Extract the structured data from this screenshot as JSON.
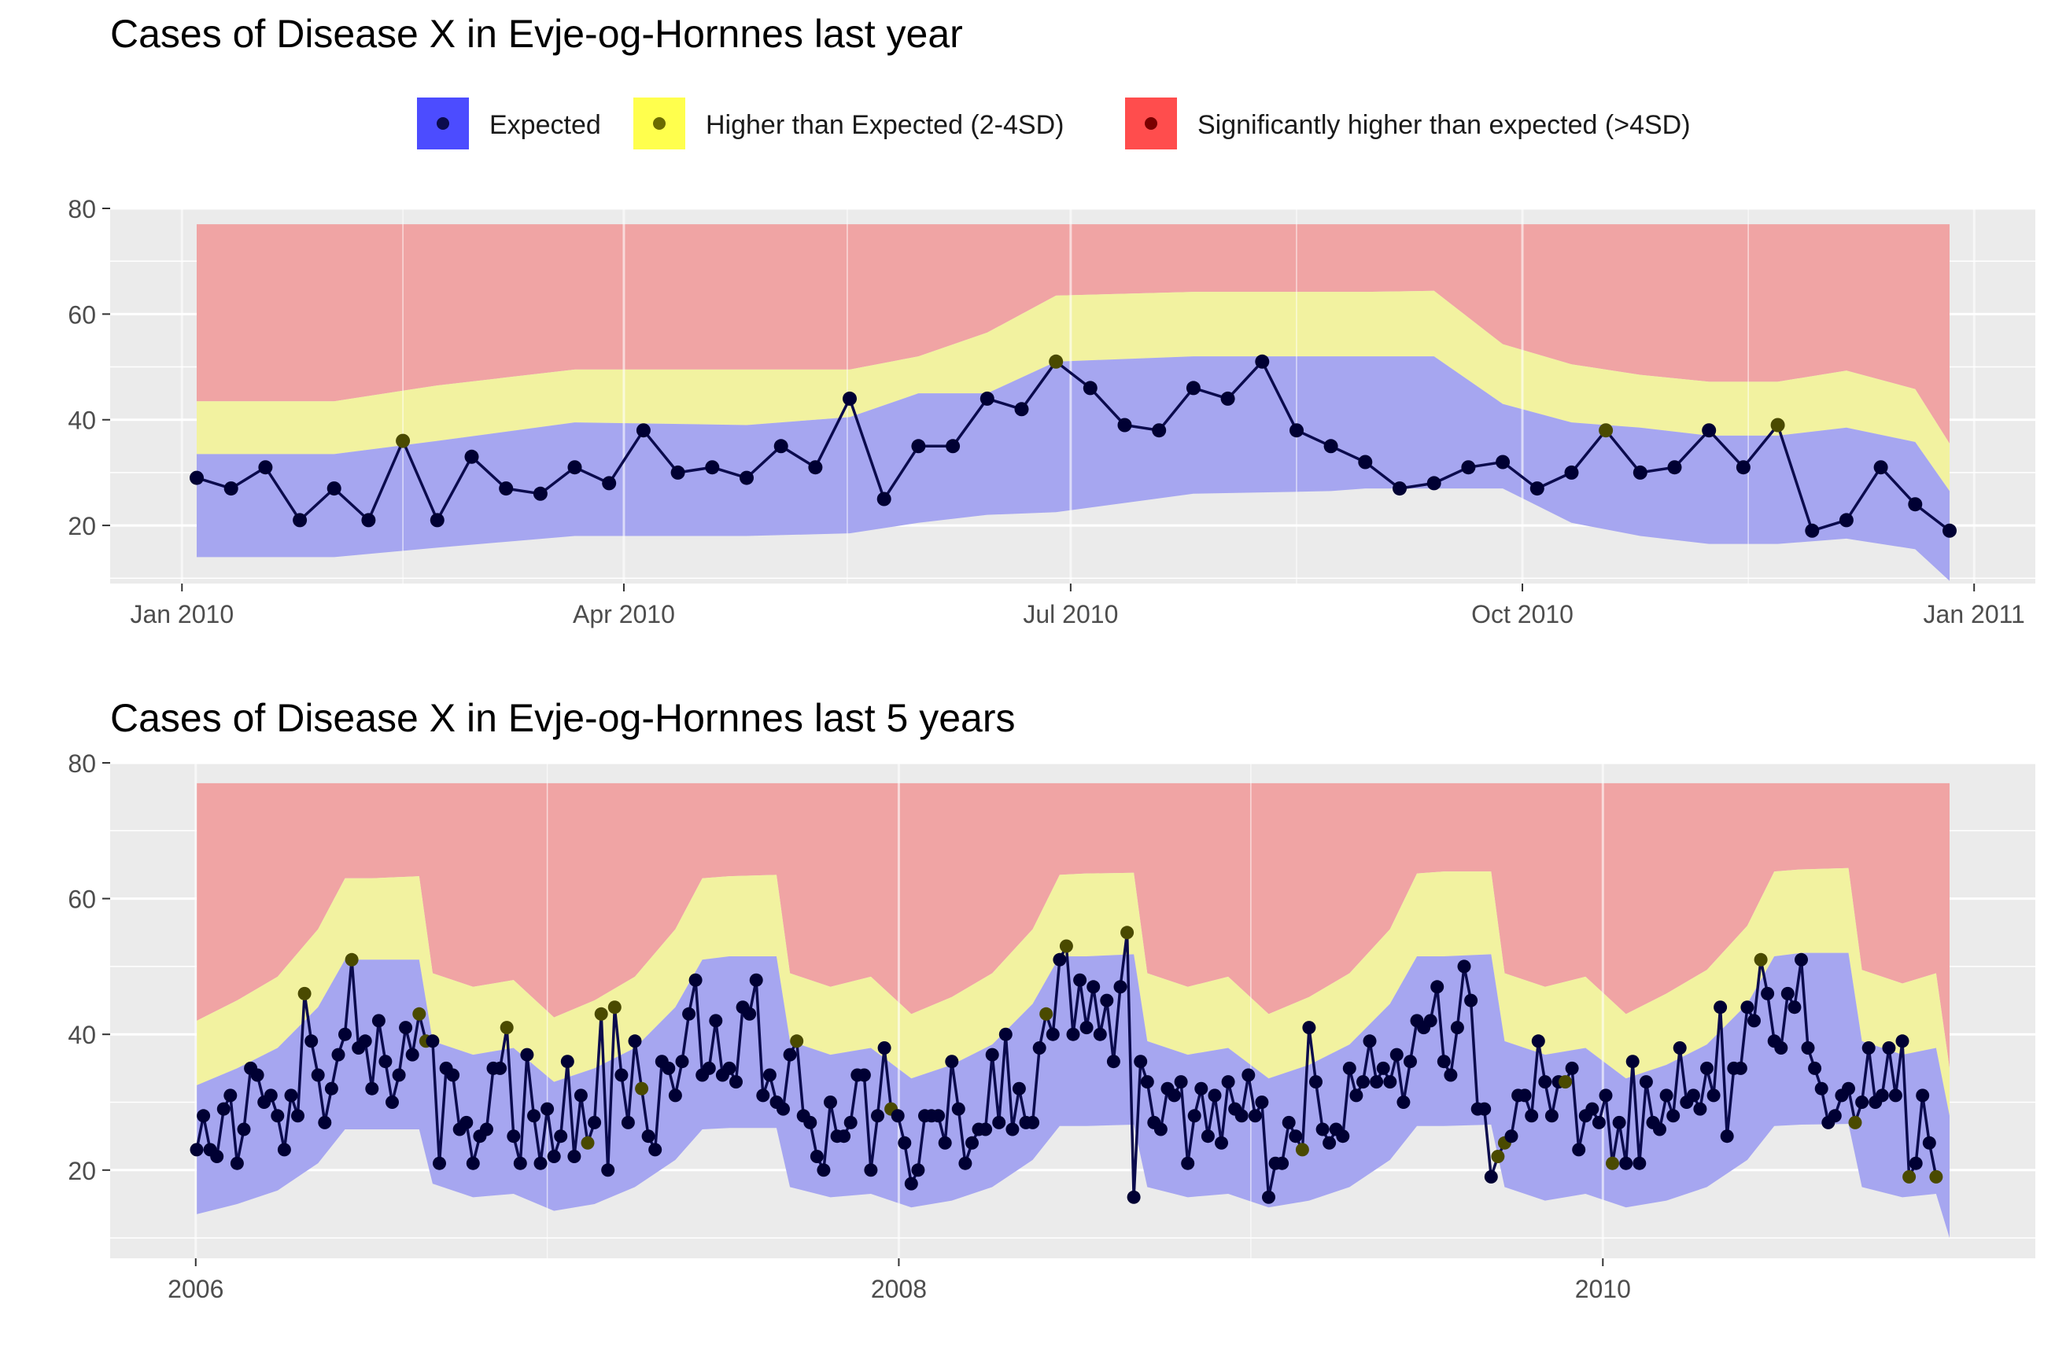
{
  "legend": {
    "items": [
      {
        "label": "Expected",
        "fill": "#4c4cff",
        "point": "#0b0b4d"
      },
      {
        "label": "Higher than Expected (2-4SD)",
        "fill": "#ffff4d",
        "point": "#6b6b00"
      },
      {
        "label": "Significantly higher than expected (>4SD)",
        "fill": "#ff4d4d",
        "point": "#7a0000"
      }
    ]
  },
  "colors": {
    "panel_bg": "#ebebeb",
    "grid": "#ffffff",
    "band_red": "#f0a4a4",
    "band_yellow": "#f2f2a0",
    "band_blue": "#a6a6f0",
    "line": "#0b0b4d",
    "point_expected": "#000033",
    "point_higher": "#4a4a00",
    "axis_text": "#4d4d4d",
    "title_text": "#000000"
  },
  "chart_data": [
    {
      "type": "line",
      "title": "Cases of Disease X in Evje-og-Hornnes last year",
      "xlabel": "",
      "ylabel": "",
      "x_axis": "date",
      "xlim": [
        "2010-01-04",
        "2010-12-27"
      ],
      "ylim": [
        9,
        80
      ],
      "x_ticks": [
        {
          "date": "2010-01-01",
          "label": "Jan 2010"
        },
        {
          "date": "2010-04-01",
          "label": "Apr 2010"
        },
        {
          "date": "2010-07-01",
          "label": "Jul 2010"
        },
        {
          "date": "2010-10-01",
          "label": "Oct 2010"
        },
        {
          "date": "2011-01-01",
          "label": "Jan 2011"
        }
      ],
      "y_ticks": [
        20,
        40,
        60,
        80
      ],
      "grid": true,
      "legend_position": "top",
      "band_top": 77,
      "bands": {
        "x": [
          "2010-01-04",
          "2010-02-01",
          "2010-02-22",
          "2010-03-22",
          "2010-04-26",
          "2010-05-17",
          "2010-05-31",
          "2010-06-14",
          "2010-06-28",
          "2010-07-26",
          "2010-08-23",
          "2010-08-30",
          "2010-09-13",
          "2010-09-27",
          "2010-10-11",
          "2010-10-25",
          "2010-11-08",
          "2010-11-22",
          "2010-12-06",
          "2010-12-20",
          "2010-12-27"
        ],
        "lower": [
          14,
          14,
          15.8,
          18,
          18,
          18.5,
          20.5,
          22,
          22.5,
          26,
          26.5,
          27,
          27,
          27,
          20.5,
          18,
          16.5,
          16.5,
          17.5,
          15.5,
          9.5
        ],
        "upper_expected": [
          33.5,
          33.5,
          36,
          39.5,
          39,
          40.5,
          45,
          45,
          51,
          52,
          52,
          52,
          52,
          43,
          39.5,
          38.5,
          37,
          37,
          38.5,
          35.8,
          26.5
        ],
        "upper_higher": [
          43.5,
          43.5,
          46.5,
          49.5,
          49.5,
          49.5,
          52,
          56.5,
          63.5,
          64.2,
          64.2,
          64.2,
          64.4,
          54.3,
          50.5,
          48.5,
          47.2,
          47.2,
          49.3,
          45.8,
          35.5
        ]
      },
      "series": [
        {
          "x": [
            "2010-01-04",
            "2010-01-11",
            "2010-01-18",
            "2010-01-25",
            "2010-02-01",
            "2010-02-08",
            "2010-02-15",
            "2010-02-22",
            "2010-03-01",
            "2010-03-08",
            "2010-03-15",
            "2010-03-22",
            "2010-03-29",
            "2010-04-05",
            "2010-04-12",
            "2010-04-19",
            "2010-04-26",
            "2010-05-03",
            "2010-05-10",
            "2010-05-17",
            "2010-05-24",
            "2010-05-31",
            "2010-06-07",
            "2010-06-14",
            "2010-06-21",
            "2010-06-28",
            "2010-07-05",
            "2010-07-12",
            "2010-07-19",
            "2010-07-26",
            "2010-08-02",
            "2010-08-09",
            "2010-08-16",
            "2010-08-23",
            "2010-08-30",
            "2010-09-06",
            "2010-09-13",
            "2010-09-20",
            "2010-09-27",
            "2010-10-04",
            "2010-10-11",
            "2010-10-18",
            "2010-10-25",
            "2010-11-01",
            "2010-11-08",
            "2010-11-15",
            "2010-11-22",
            "2010-11-29",
            "2010-12-06",
            "2010-12-13",
            "2010-12-20",
            "2010-12-27"
          ],
          "values": [
            29,
            27,
            31,
            21,
            27,
            21,
            36,
            21,
            33,
            27,
            26,
            31,
            28,
            38,
            30,
            31,
            29,
            35,
            31,
            44,
            25,
            35,
            35,
            44,
            42,
            51,
            46,
            39,
            38,
            46,
            44,
            51,
            38,
            35,
            32,
            27,
            28,
            31,
            32,
            27,
            30,
            38,
            30,
            31,
            38,
            31,
            39,
            19,
            21,
            31,
            24,
            19
          ],
          "status": [
            "e",
            "e",
            "e",
            "e",
            "e",
            "e",
            "h",
            "e",
            "e",
            "e",
            "e",
            "e",
            "e",
            "e",
            "e",
            "e",
            "e",
            "e",
            "e",
            "e",
            "e",
            "e",
            "e",
            "e",
            "e",
            "h",
            "e",
            "e",
            "e",
            "e",
            "e",
            "e",
            "e",
            "e",
            "e",
            "e",
            "e",
            "e",
            "e",
            "e",
            "e",
            "h",
            "e",
            "e",
            "e",
            "e",
            "h",
            "e",
            "e",
            "e",
            "e",
            "e"
          ]
        }
      ]
    },
    {
      "type": "line",
      "title": "Cases of Disease X in Evje-og-Hornnes last 5 years",
      "xlabel": "",
      "ylabel": "",
      "x_axis": "date",
      "xlim": [
        "2006-01-02",
        "2010-12-27"
      ],
      "ylim": [
        7,
        80
      ],
      "x_ticks": [
        {
          "date": "2006-01-01",
          "label": "2006"
        },
        {
          "date": "2008-01-01",
          "label": "2008"
        },
        {
          "date": "2010-01-01",
          "label": "2010"
        }
      ],
      "y_ticks": [
        20,
        40,
        60,
        80
      ],
      "grid": true,
      "band_top": 77,
      "bands": {
        "x": [
          "2006-01-02",
          "2006-02-13",
          "2006-03-27",
          "2006-05-08",
          "2006-06-05",
          "2006-07-03",
          "2006-08-21",
          "2006-09-04",
          "2006-10-16",
          "2006-11-27",
          "2007-01-08",
          "2007-02-19",
          "2007-04-02",
          "2007-05-14",
          "2007-06-11",
          "2007-07-09",
          "2007-08-27",
          "2007-09-10",
          "2007-10-22",
          "2007-12-03",
          "2008-01-14",
          "2008-02-25",
          "2008-04-07",
          "2008-05-19",
          "2008-06-16",
          "2008-07-14",
          "2008-09-01",
          "2008-09-15",
          "2008-10-27",
          "2008-12-08",
          "2009-01-19",
          "2009-03-02",
          "2009-04-13",
          "2009-05-25",
          "2009-06-22",
          "2009-07-20",
          "2009-09-07",
          "2009-09-21",
          "2009-11-02",
          "2009-12-14",
          "2010-01-25",
          "2010-03-08",
          "2010-04-19",
          "2010-05-31",
          "2010-06-28",
          "2010-07-26",
          "2010-09-13",
          "2010-09-27",
          "2010-11-08",
          "2010-12-13",
          "2010-12-27"
        ],
        "lower": [
          13.5,
          15,
          17,
          21,
          26,
          26,
          26,
          18,
          16,
          16.5,
          14,
          15,
          17.5,
          21.5,
          26,
          26.2,
          26.2,
          17.5,
          16,
          16.5,
          14.5,
          15.5,
          17.5,
          21.5,
          26.5,
          26.5,
          26.7,
          17.5,
          16,
          16.5,
          14.5,
          15.5,
          17.5,
          21.5,
          26.5,
          26.5,
          26.7,
          17.5,
          15.5,
          16.5,
          14.5,
          15.5,
          17.5,
          21.5,
          26.5,
          26.7,
          26.8,
          17.5,
          16,
          16.5,
          10
        ],
        "upper_expected": [
          32.5,
          35,
          38,
          44,
          51,
          51,
          51,
          39,
          37,
          38,
          33,
          35,
          38,
          44,
          51,
          51.5,
          51.5,
          39,
          37,
          38,
          33.5,
          35.5,
          38.5,
          44.5,
          51.5,
          51.5,
          51.8,
          39,
          37,
          38,
          33.5,
          35.5,
          38.5,
          44.5,
          51.5,
          51.5,
          51.8,
          39,
          37,
          38,
          33.5,
          35.5,
          38.5,
          44.5,
          51.5,
          52,
          52,
          39,
          37,
          38,
          28
        ],
        "upper_higher": [
          42,
          45,
          48.5,
          55.5,
          63,
          63,
          63.3,
          49,
          47,
          48,
          42.5,
          45,
          48.5,
          55.5,
          63,
          63.3,
          63.5,
          49,
          47,
          48.5,
          43,
          45.5,
          49,
          55.5,
          63.5,
          63.7,
          63.8,
          49,
          47,
          48.5,
          43,
          45.5,
          49,
          55.5,
          63.7,
          64,
          64,
          49,
          47,
          48.5,
          43,
          46,
          49.5,
          56,
          64,
          64.3,
          64.5,
          49.5,
          47.5,
          49,
          35
        ]
      },
      "series": [
        {
          "x_start": "2006-01-02",
          "x_step_days": 7,
          "values": [
            23,
            28,
            23,
            22,
            29,
            31,
            21,
            26,
            35,
            34,
            30,
            31,
            28,
            23,
            31,
            28,
            46,
            39,
            34,
            27,
            32,
            37,
            40,
            51,
            38,
            39,
            32,
            42,
            36,
            30,
            34,
            41,
            37,
            43,
            39,
            39,
            21,
            35,
            34,
            26,
            27,
            21,
            25,
            26,
            35,
            35,
            41,
            25,
            21,
            37,
            28,
            21,
            29,
            22,
            25,
            36,
            22,
            31,
            24,
            27,
            43,
            20,
            44,
            34,
            27,
            39,
            32,
            25,
            23,
            36,
            35,
            31,
            36,
            43,
            48,
            34,
            35,
            42,
            34,
            35,
            33,
            44,
            43,
            48,
            31,
            34,
            30,
            29,
            37,
            39,
            28,
            27,
            22,
            20,
            30,
            25,
            25,
            27,
            34,
            34,
            20,
            28,
            38,
            29,
            28,
            24,
            18,
            20,
            28,
            28,
            28,
            24,
            36,
            29,
            21,
            24,
            26,
            26,
            37,
            27,
            40,
            26,
            32,
            27,
            27,
            38,
            43,
            40,
            51,
            53,
            40,
            48,
            41,
            47,
            40,
            45,
            36,
            47,
            55,
            16,
            36,
            33,
            27,
            26,
            32,
            31,
            33,
            21,
            28,
            32,
            25,
            31,
            24,
            33,
            29,
            28,
            34,
            28,
            30,
            16,
            21,
            21,
            27,
            25,
            23,
            41,
            33,
            26,
            24,
            26,
            25,
            35,
            31,
            33,
            39,
            33,
            35,
            33,
            37,
            30,
            36,
            42,
            41,
            42,
            47,
            36,
            34,
            41,
            50,
            45,
            29,
            29,
            19,
            22,
            24,
            25,
            31,
            31,
            28,
            39,
            33,
            28,
            33,
            33,
            35,
            23,
            28,
            29,
            27,
            31,
            21,
            27,
            21,
            36,
            21,
            33,
            27,
            26,
            31,
            28,
            38,
            30,
            31,
            29,
            35,
            31,
            44,
            25,
            35,
            35,
            44,
            42,
            51,
            46,
            39,
            38,
            46,
            44,
            51,
            38,
            35,
            32,
            27,
            28,
            31,
            32,
            27,
            30,
            38,
            30,
            31,
            38,
            31,
            39,
            19,
            21,
            31,
            24,
            19
          ],
          "higher_indices": [
            16,
            23,
            33,
            34,
            46,
            58,
            60,
            62,
            66,
            89,
            103,
            126,
            129,
            138,
            164,
            193,
            194,
            203,
            210,
            232,
            246,
            254,
            258
          ]
        }
      ]
    }
  ]
}
